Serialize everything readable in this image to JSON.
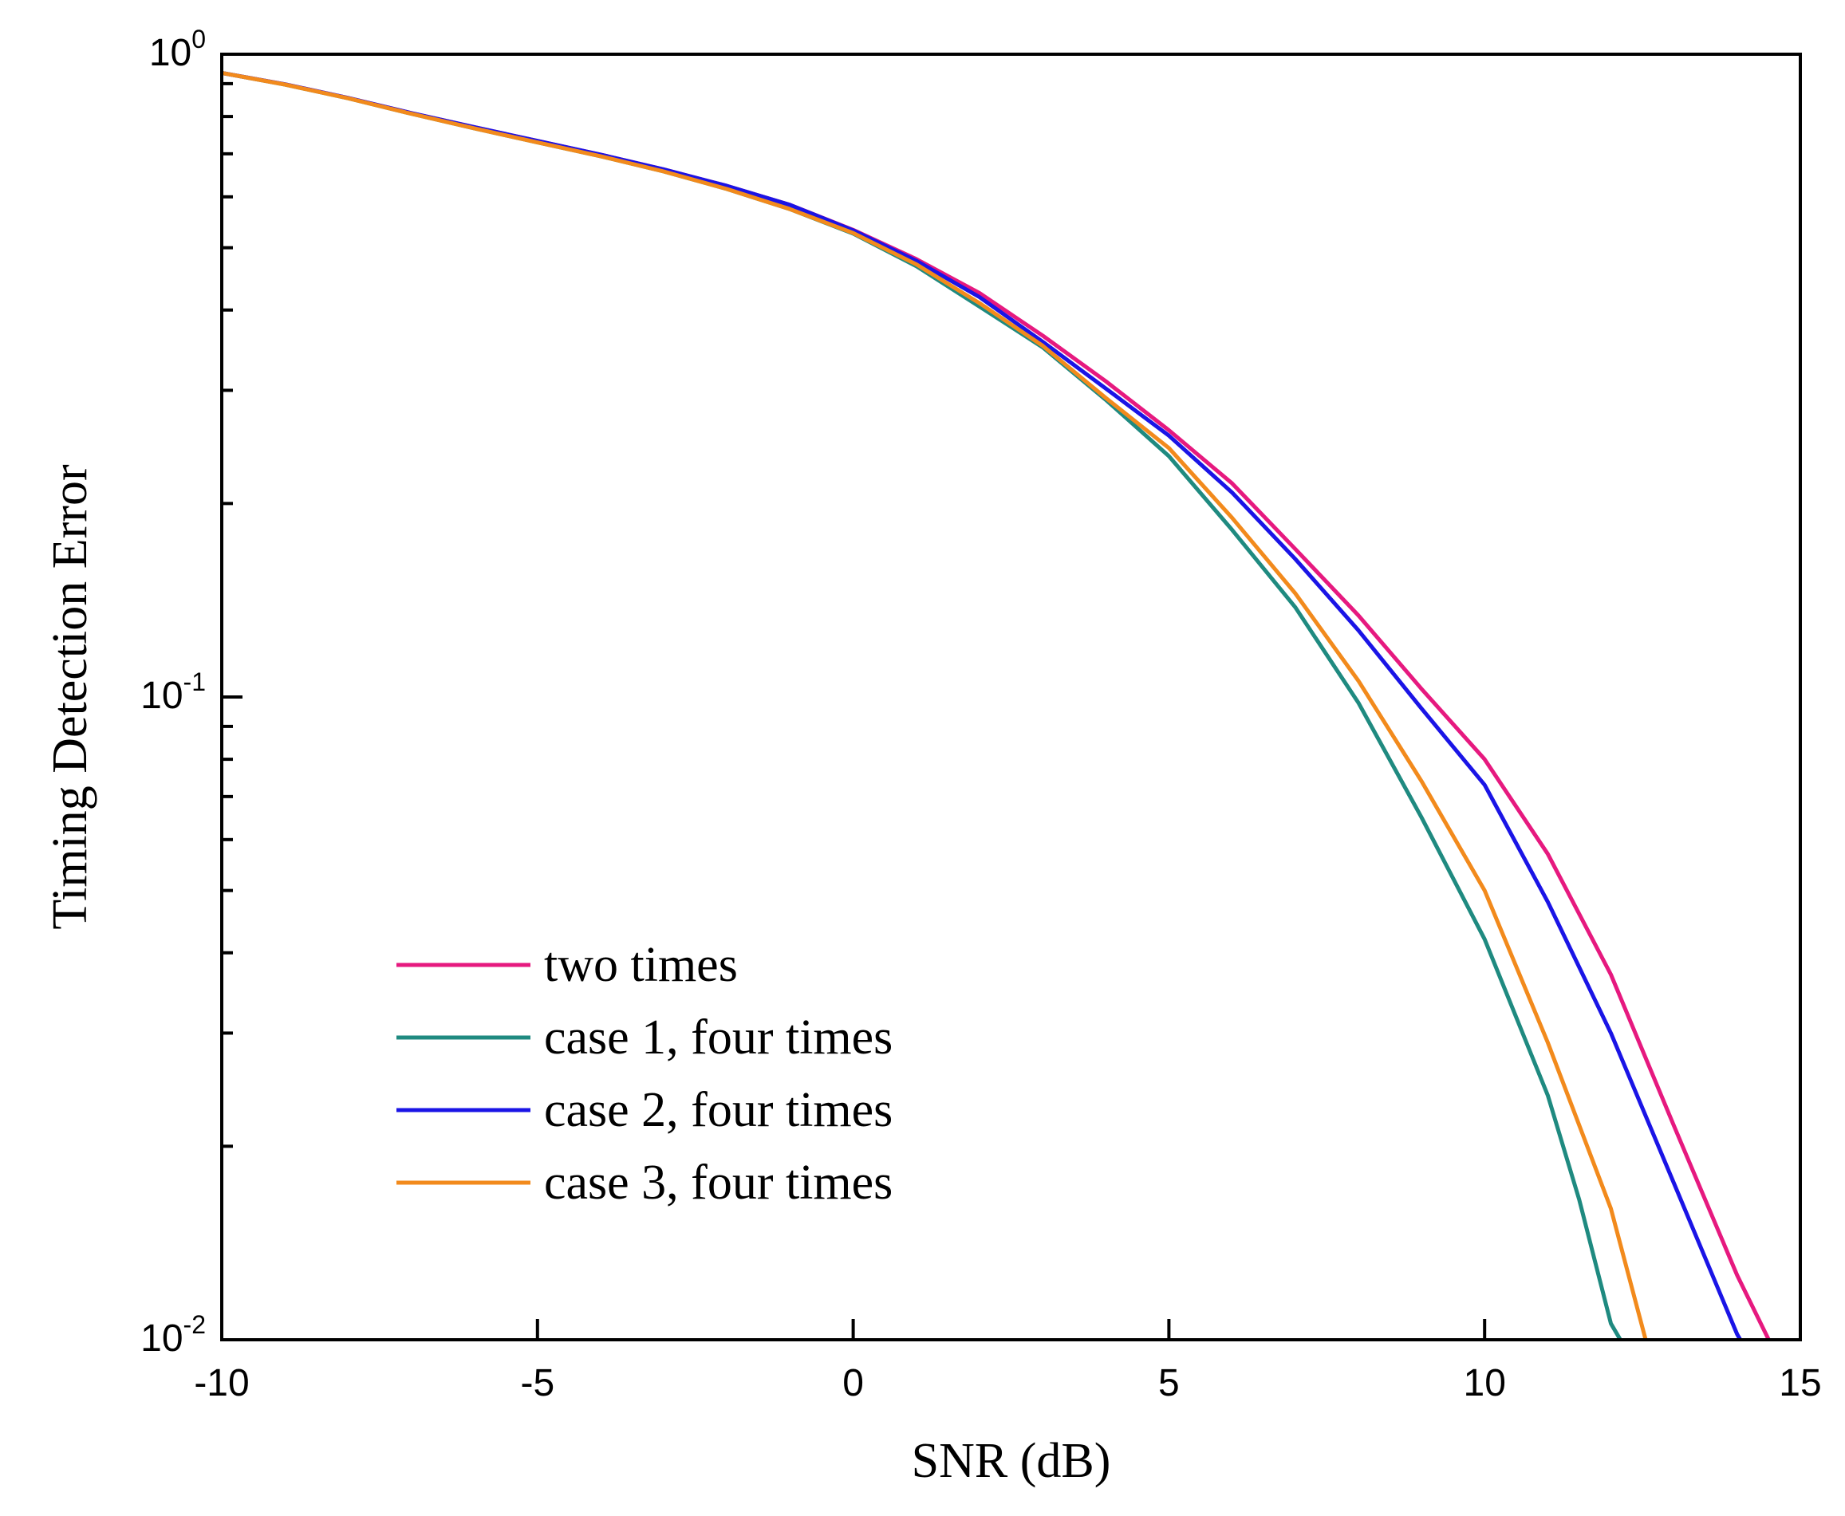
{
  "chart_data": {
    "type": "line",
    "title": "",
    "xlabel": "SNR (dB)",
    "ylabel": "Timing Detection Error",
    "xlim": [
      -10,
      15
    ],
    "ylim": [
      0.01,
      1
    ],
    "yscale": "log",
    "grid": false,
    "legend_position": "lower-left",
    "x_ticks": [
      {
        "value": -10,
        "label": "-10"
      },
      {
        "value": -5,
        "label": "-5"
      },
      {
        "value": 0,
        "label": "0"
      },
      {
        "value": 5,
        "label": "5"
      },
      {
        "value": 10,
        "label": "10"
      },
      {
        "value": 15,
        "label": "15"
      }
    ],
    "y_ticks": [
      {
        "value": 1,
        "base": "10",
        "exp": "0"
      },
      {
        "value": 0.1,
        "base": "10",
        "exp": "-1"
      },
      {
        "value": 0.01,
        "base": "10",
        "exp": "-2"
      }
    ],
    "series": [
      {
        "name": "two times",
        "color": "#e6197f",
        "x": [
          -10,
          -9,
          -8,
          -7,
          -6,
          -5,
          -4,
          -3,
          -2,
          -1,
          0,
          1,
          2,
          3,
          4,
          5,
          6,
          7,
          8,
          9,
          10,
          11,
          12,
          13,
          14,
          14.5
        ],
        "y": [
          0.935,
          0.898,
          0.855,
          0.81,
          0.77,
          0.733,
          0.698,
          0.662,
          0.624,
          0.583,
          0.533,
          0.48,
          0.425,
          0.365,
          0.31,
          0.26,
          0.215,
          0.17,
          0.134,
          0.103,
          0.08,
          0.057,
          0.037,
          0.0215,
          0.0126,
          0.01
        ]
      },
      {
        "name": "case 1, four times",
        "color": "#1f8a80",
        "x": [
          -10,
          -9,
          -8,
          -7,
          -6,
          -5,
          -4,
          -3,
          -2,
          -1,
          0,
          1,
          2,
          3,
          4,
          5,
          6,
          7,
          8,
          9,
          10,
          11,
          11.5,
          12,
          12.15
        ],
        "y": [
          0.935,
          0.897,
          0.854,
          0.808,
          0.767,
          0.729,
          0.694,
          0.657,
          0.617,
          0.574,
          0.526,
          0.468,
          0.405,
          0.35,
          0.29,
          0.237,
          0.182,
          0.138,
          0.098,
          0.065,
          0.042,
          0.024,
          0.0165,
          0.0106,
          0.01
        ]
      },
      {
        "name": "case 2, four times",
        "color": "#1a14e6",
        "x": [
          -10,
          -9,
          -8,
          -7,
          -6,
          -5,
          -4,
          -3,
          -2,
          -1,
          0,
          1,
          2,
          3,
          4,
          5,
          6,
          7,
          8,
          9,
          10,
          11,
          12,
          13,
          14,
          14.05
        ],
        "y": [
          0.935,
          0.898,
          0.855,
          0.81,
          0.77,
          0.733,
          0.698,
          0.662,
          0.624,
          0.583,
          0.532,
          0.477,
          0.419,
          0.357,
          0.302,
          0.255,
          0.208,
          0.164,
          0.127,
          0.096,
          0.073,
          0.048,
          0.03,
          0.0175,
          0.0102,
          0.01
        ]
      },
      {
        "name": "case 3, four times",
        "color": "#f28a1c",
        "x": [
          -10,
          -9,
          -8,
          -7,
          -6,
          -5,
          -4,
          -3,
          -2,
          -1,
          0,
          1,
          2,
          3,
          4,
          5,
          6,
          7,
          8,
          9,
          10,
          11,
          12,
          12.55
        ],
        "y": [
          0.935,
          0.897,
          0.854,
          0.808,
          0.767,
          0.729,
          0.694,
          0.657,
          0.617,
          0.574,
          0.527,
          0.471,
          0.41,
          0.352,
          0.292,
          0.244,
          0.19,
          0.145,
          0.106,
          0.074,
          0.05,
          0.029,
          0.016,
          0.01
        ]
      }
    ]
  }
}
